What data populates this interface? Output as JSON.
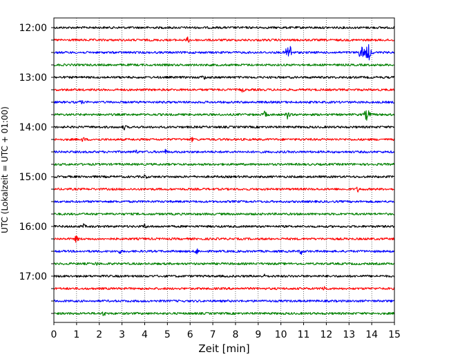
{
  "chart_data": {
    "type": "line",
    "xlabel": "Zeit  [min]",
    "ylabel": "UTC (Lokalzeit = UTC + 01:00)",
    "xlim": [
      0,
      15
    ],
    "x_ticks": [
      "0",
      "1",
      "2",
      "3",
      "4",
      "5",
      "6",
      "7",
      "8",
      "9",
      "10",
      "11",
      "12",
      "13",
      "14",
      "15"
    ],
    "y_tick_labels": [
      "12:00",
      "13:00",
      "14:00",
      "15:00",
      "16:00",
      "17:00"
    ],
    "grid_x": true,
    "trace_interval_min": 15,
    "trace_colors": [
      "#000000",
      "#ff0000",
      "#0000ff",
      "#008000"
    ],
    "traces": [
      {
        "start": "12:00",
        "color": "#000000",
        "events": []
      },
      {
        "start": "12:15",
        "color": "#ff0000",
        "events": [
          {
            "t": 5.9,
            "amp": 0.35
          }
        ]
      },
      {
        "start": "12:30",
        "color": "#0000ff",
        "events": [
          {
            "t": 10.35,
            "amp": 1.4
          },
          {
            "t": 13.55,
            "amp": 0.9
          },
          {
            "t": 13.85,
            "amp": 1.2
          }
        ]
      },
      {
        "start": "12:45",
        "color": "#008000",
        "events": []
      },
      {
        "start": "13:00",
        "color": "#000000",
        "events": [
          {
            "t": 6.6,
            "amp": 0.3
          }
        ]
      },
      {
        "start": "13:15",
        "color": "#ff0000",
        "events": [
          {
            "t": 8.3,
            "amp": 0.3
          }
        ]
      },
      {
        "start": "13:30",
        "color": "#0000ff",
        "events": [
          {
            "t": 1.2,
            "amp": 0.2
          }
        ]
      },
      {
        "start": "13:45",
        "color": "#008000",
        "events": [
          {
            "t": 9.3,
            "amp": 0.5
          },
          {
            "t": 10.3,
            "amp": 0.6
          },
          {
            "t": 13.8,
            "amp": 0.8
          }
        ]
      },
      {
        "start": "14:00",
        "color": "#000000",
        "events": [
          {
            "t": 3.1,
            "amp": 0.3
          }
        ]
      },
      {
        "start": "14:15",
        "color": "#ff0000",
        "events": [
          {
            "t": 1.3,
            "amp": 0.3
          },
          {
            "t": 6.1,
            "amp": 0.25
          }
        ]
      },
      {
        "start": "14:30",
        "color": "#0000ff",
        "events": [
          {
            "t": 3.6,
            "amp": 0.3
          },
          {
            "t": 4.9,
            "amp": 0.3
          }
        ]
      },
      {
        "start": "14:45",
        "color": "#008000",
        "events": []
      },
      {
        "start": "15:00",
        "color": "#000000",
        "events": [
          {
            "t": 4.0,
            "amp": 0.3
          }
        ]
      },
      {
        "start": "15:15",
        "color": "#ff0000",
        "events": [
          {
            "t": 13.4,
            "amp": 0.35
          }
        ]
      },
      {
        "start": "15:30",
        "color": "#0000ff",
        "events": []
      },
      {
        "start": "15:45",
        "color": "#008000",
        "events": []
      },
      {
        "start": "16:00",
        "color": "#000000",
        "events": [
          {
            "t": 1.3,
            "amp": 0.3
          },
          {
            "t": 4.0,
            "amp": 0.3
          }
        ]
      },
      {
        "start": "16:15",
        "color": "#ff0000",
        "events": [
          {
            "t": 1.0,
            "amp": 0.5
          }
        ]
      },
      {
        "start": "16:30",
        "color": "#0000ff",
        "events": [
          {
            "t": 6.3,
            "amp": 0.4
          },
          {
            "t": 10.9,
            "amp": 0.4
          },
          {
            "t": 2.9,
            "amp": 0.25
          }
        ]
      },
      {
        "start": "16:45",
        "color": "#008000",
        "events": [
          {
            "t": 1.9,
            "amp": 0.2
          }
        ]
      },
      {
        "start": "17:00",
        "color": "#000000",
        "events": [
          {
            "t": 9.3,
            "amp": 0.2
          }
        ]
      },
      {
        "start": "17:15",
        "color": "#ff0000",
        "events": [
          {
            "t": 11.9,
            "amp": 0.45
          }
        ]
      },
      {
        "start": "17:30",
        "color": "#0000ff",
        "events": []
      },
      {
        "start": "17:45",
        "color": "#008000",
        "events": [
          {
            "t": 2.2,
            "amp": 0.3
          }
        ]
      }
    ]
  }
}
